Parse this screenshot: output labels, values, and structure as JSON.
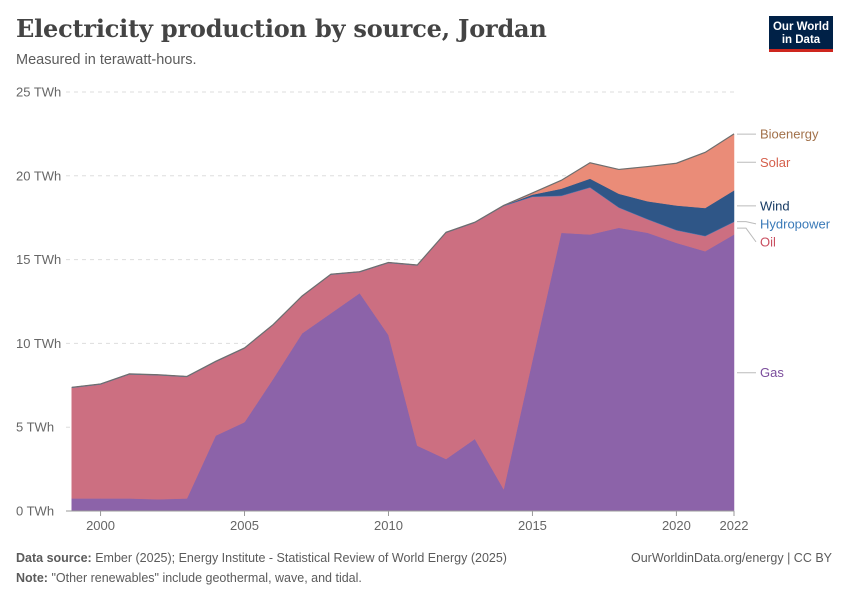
{
  "header": {
    "title": "Electricity production by source, Jordan",
    "subtitle": "Measured in terawatt-hours.",
    "logo_line1": "Our World",
    "logo_line2": "in Data"
  },
  "footer": {
    "source_label": "Data source:",
    "source_text": "Ember (2025); Energy Institute - Statistical Review of World Energy (2025)",
    "note_label": "Note:",
    "note_text": "\"Other renewables\" include geothermal, wave, and tidal.",
    "credit": "OurWorldinData.org/energy | CC BY"
  },
  "chart_data": {
    "type": "area",
    "stacked": true,
    "title": "Electricity production by source, Jordan",
    "ylabel": "TWh",
    "unit_suffix": " TWh",
    "ylim": [
      0,
      25
    ],
    "yticks": [
      0,
      5,
      10,
      15,
      20,
      25
    ],
    "xlim": [
      1998.8,
      2022
    ],
    "xticks": [
      2000,
      2005,
      2010,
      2015,
      2020,
      2022
    ],
    "grid": true,
    "x": [
      1999,
      2000,
      2001,
      2002,
      2003,
      2004,
      2005,
      2006,
      2007,
      2008,
      2009,
      2010,
      2011,
      2012,
      2013,
      2014,
      2015,
      2016,
      2017,
      2018,
      2019,
      2020,
      2021,
      2022
    ],
    "series": [
      {
        "name": "Gas",
        "color": "#8c63a9",
        "values": [
          0.75,
          0.75,
          0.75,
          0.7,
          0.75,
          4.5,
          5.3,
          7.9,
          10.6,
          11.8,
          13.0,
          10.5,
          3.9,
          3.1,
          4.3,
          1.3,
          9.0,
          16.6,
          16.5,
          16.9,
          16.6,
          16.0,
          15.5,
          16.5
        ]
      },
      {
        "name": "Oil",
        "color": "#cc6f81",
        "values": [
          6.6,
          6.8,
          7.4,
          7.4,
          7.25,
          4.4,
          4.4,
          3.2,
          2.2,
          2.3,
          1.25,
          4.3,
          10.75,
          13.5,
          12.9,
          16.9,
          9.75,
          2.2,
          2.8,
          1.2,
          0.8,
          0.75,
          0.9,
          0.75
        ]
      },
      {
        "name": "Hydropower",
        "color": "#4c78b3",
        "values": [
          0.03,
          0.03,
          0.03,
          0.03,
          0.03,
          0.03,
          0.03,
          0.03,
          0.03,
          0.03,
          0.03,
          0.03,
          0.03,
          0.03,
          0.03,
          0.03,
          0.03,
          0.03,
          0.03,
          0.03,
          0.03,
          0.03,
          0.03,
          0.03
        ]
      },
      {
        "name": "Wind",
        "color": "#2f5687",
        "values": [
          0.0,
          0.0,
          0.0,
          0.0,
          0.0,
          0.0,
          0.0,
          0.0,
          0.0,
          0.0,
          0.0,
          0.0,
          0.0,
          0.0,
          0.0,
          0.0,
          0.1,
          0.4,
          0.5,
          0.8,
          1.05,
          1.45,
          1.65,
          1.85
        ]
      },
      {
        "name": "Solar",
        "color": "#ea8c78",
        "values": [
          0.0,
          0.0,
          0.0,
          0.0,
          0.0,
          0.0,
          0.0,
          0.0,
          0.0,
          0.0,
          0.0,
          0.0,
          0.0,
          0.0,
          0.0,
          0.0,
          0.1,
          0.5,
          0.95,
          1.45,
          2.05,
          2.5,
          3.3,
          3.35
        ]
      },
      {
        "name": "Bioenergy",
        "color": "#c59770",
        "values": [
          0.0,
          0.0,
          0.0,
          0.0,
          0.0,
          0.0,
          0.0,
          0.0,
          0.0,
          0.0,
          0.0,
          0.0,
          0.0,
          0.0,
          0.0,
          0.0,
          0.0,
          0.0,
          0.0,
          0.0,
          0.02,
          0.02,
          0.02,
          0.02
        ]
      }
    ],
    "legend": [
      {
        "name": "Bioenergy",
        "color": "#a2714a"
      },
      {
        "name": "Solar",
        "color": "#d5604c"
      },
      {
        "name": "Wind",
        "color": "#173b64"
      },
      {
        "name": "Hydropower",
        "color": "#3a7ab8"
      },
      {
        "name": "Oil",
        "color": "#c94e5f"
      },
      {
        "name": "Gas",
        "color": "#7b4d9c"
      }
    ]
  }
}
